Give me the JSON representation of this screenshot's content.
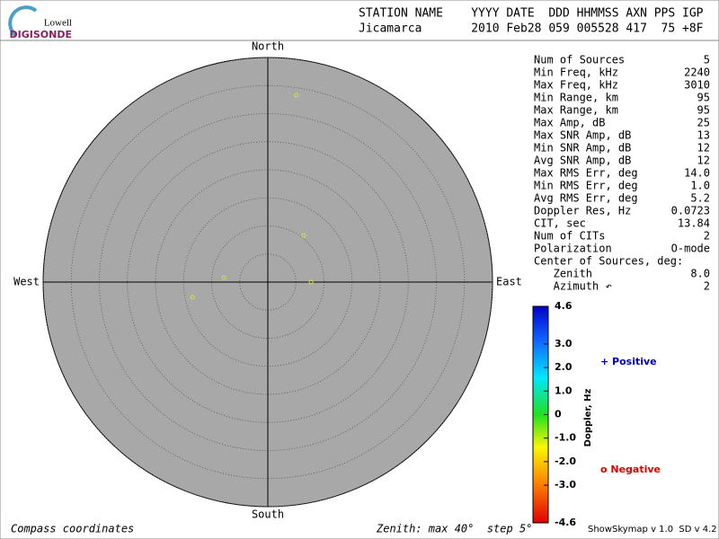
{
  "logo": {
    "top": "Lowell",
    "bottom": "DIGISONDE"
  },
  "header": {
    "line1": "STATION NAME    YYYY DATE  DDD HHMMSS AXN PPS IGP",
    "line2": "Jicamarca       2010 Feb28 059 005528 417  75 +8F"
  },
  "stats": [
    [
      "Num of Sources",
      "5"
    ],
    [
      "Min Freq, kHz",
      "2240"
    ],
    [
      "Max Freq, kHz",
      "3010"
    ],
    [
      "Min Range, km",
      "95"
    ],
    [
      "Max Range, km",
      "95"
    ],
    [
      "Max Amp, dB",
      "25"
    ],
    [
      "Max SNR Amp, dB",
      "13"
    ],
    [
      "Min SNR Amp, dB",
      "12"
    ],
    [
      "Avg SNR Amp, dB",
      "12"
    ],
    [
      "Max RMS Err, deg",
      "14.0"
    ],
    [
      "Min RMS Err, deg",
      "1.0"
    ],
    [
      "Avg RMS Err, deg",
      "5.2"
    ],
    [
      "Doppler Res, Hz",
      "0.0723"
    ],
    [
      "CIT, sec",
      "13.84"
    ],
    [
      "Num of CITs",
      "2"
    ],
    [
      "Polarization",
      "O-mode"
    ],
    [
      "Center of Sources, deg:"
    ],
    [
      "   Zenith",
      "8.0"
    ],
    [
      "   Azimuth ↶",
      "2"
    ]
  ],
  "footer": {
    "left": "Compass coordinates",
    "center": "Zenith: max 40°  step 5°",
    "right": "ShowSkymap v 1.0  SD v 4.2"
  },
  "chart_data": {
    "type": "skymap",
    "directions": {
      "north": "North",
      "south": "South",
      "west": "West",
      "east": "East"
    },
    "rlim": [
      0,
      40
    ],
    "rticks": [
      5,
      10,
      15,
      20,
      25,
      30,
      35,
      40
    ],
    "series": [
      {
        "color": "#d8e040",
        "x": [
          5.1,
          6.4,
          -7.8,
          -13.4,
          7.7
        ],
        "values": [
          33.3,
          8.3,
          0.8,
          -2.7,
          0
        ]
      }
    ],
    "colorbar": {
      "label": "Doppler, Hz",
      "lim": [
        -4.6,
        4.6
      ],
      "ticks": [
        4.6,
        {
          "value": 3,
          "label": "3.0"
        },
        {
          "value": 2,
          "label": "2.0"
        },
        {
          "value": 1,
          "label": "1.0"
        },
        0,
        {
          "value": -1,
          "label": "-1.0"
        },
        {
          "value": -2,
          "label": "-2.0"
        },
        {
          "value": -3,
          "label": "-3.0"
        },
        -4.6
      ]
    },
    "legend": [
      {
        "name": "+ Positive",
        "color": "#0000c0"
      },
      {
        "name": "o Negative",
        "color": "#e00000"
      }
    ]
  }
}
